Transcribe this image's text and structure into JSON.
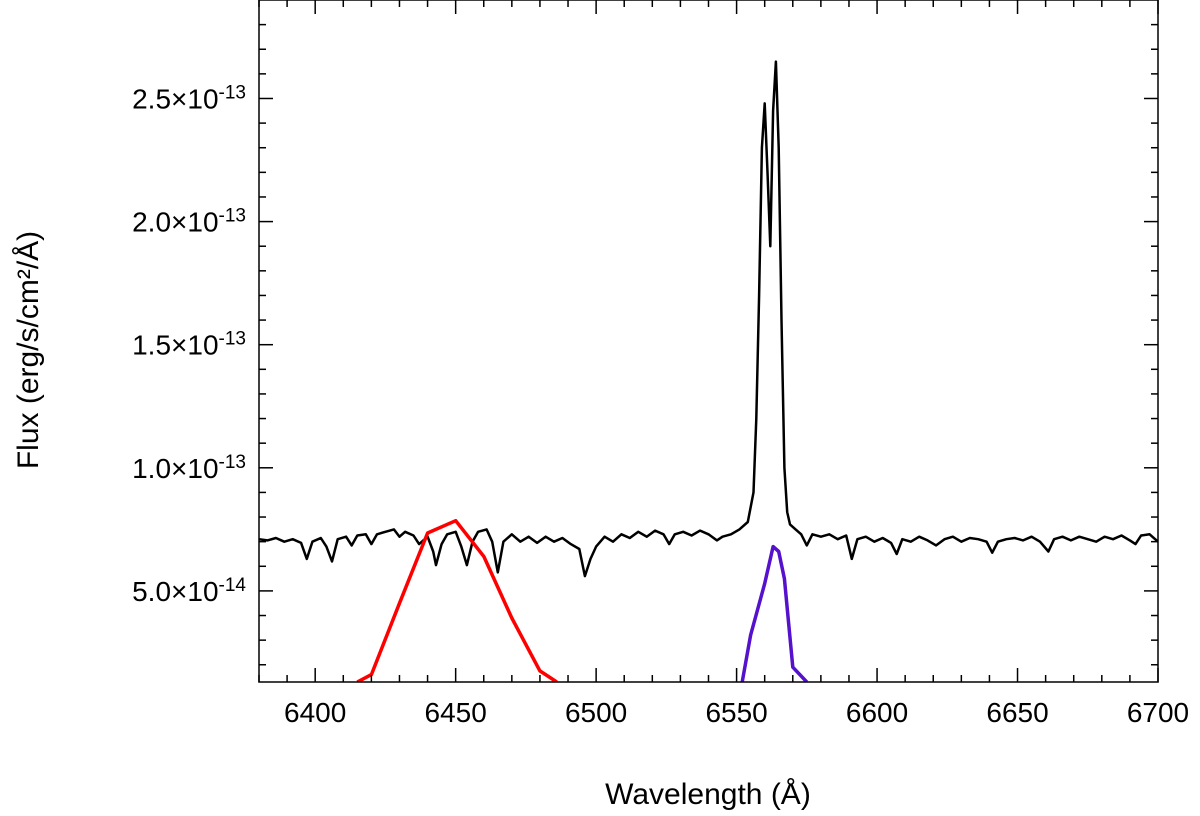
{
  "chart_data": {
    "type": "line",
    "title": "",
    "xlabel": "Wavelength (Å)",
    "ylabel": "Flux (erg/s/cm²/Å)",
    "xlim": [
      6380,
      6700
    ],
    "ylim": [
      1.3e-14,
      2.9e-13
    ],
    "grid": false,
    "legend": "none",
    "x_ticks": [
      {
        "value": 6400,
        "label": "6400"
      },
      {
        "value": 6450,
        "label": "6450"
      },
      {
        "value": 6500,
        "label": "6500"
      },
      {
        "value": 6550,
        "label": "6550"
      },
      {
        "value": 6600,
        "label": "6600"
      },
      {
        "value": 6650,
        "label": "6650"
      },
      {
        "value": 6700,
        "label": "6700"
      }
    ],
    "y_ticks": [
      {
        "value": 5e-14,
        "mantissa": "5.0",
        "exponent": "-14"
      },
      {
        "value": 1e-13,
        "mantissa": "1.0",
        "exponent": "-13"
      },
      {
        "value": 1.5e-13,
        "mantissa": "1.5",
        "exponent": "-13"
      },
      {
        "value": 2e-13,
        "mantissa": "2.0",
        "exponent": "-13"
      },
      {
        "value": 2.5e-13,
        "mantissa": "2.5",
        "exponent": "-13"
      }
    ],
    "series": [
      {
        "color": "#000000",
        "points": [
          [
            6380,
            7.1e-14
          ],
          [
            6383,
            7.05e-14
          ],
          [
            6386,
            7.15e-14
          ],
          [
            6389,
            7e-14
          ],
          [
            6392,
            7.1e-14
          ],
          [
            6395,
            6.95e-14
          ],
          [
            6397,
            6.3e-14
          ],
          [
            6399,
            7e-14
          ],
          [
            6402,
            7.15e-14
          ],
          [
            6404,
            6.8e-14
          ],
          [
            6406,
            6.2e-14
          ],
          [
            6408,
            7.1e-14
          ],
          [
            6411,
            7.2e-14
          ],
          [
            6413,
            6.85e-14
          ],
          [
            6415,
            7.25e-14
          ],
          [
            6418,
            7.3e-14
          ],
          [
            6420,
            6.9e-14
          ],
          [
            6422,
            7.3e-14
          ],
          [
            6425,
            7.4e-14
          ],
          [
            6428,
            7.5e-14
          ],
          [
            6430,
            7.2e-14
          ],
          [
            6432,
            7.4e-14
          ],
          [
            6435,
            7.25e-14
          ],
          [
            6437,
            6.9e-14
          ],
          [
            6440,
            7.2e-14
          ],
          [
            6442,
            6.6e-14
          ],
          [
            6443,
            6.05e-14
          ],
          [
            6445,
            6.9e-14
          ],
          [
            6447,
            7.3e-14
          ],
          [
            6450,
            7.4e-14
          ],
          [
            6452,
            6.8e-14
          ],
          [
            6454,
            6.05e-14
          ],
          [
            6456,
            7e-14
          ],
          [
            6458,
            7.4e-14
          ],
          [
            6461,
            7.5e-14
          ],
          [
            6463,
            7e-14
          ],
          [
            6465,
            5.75e-14
          ],
          [
            6467,
            7e-14
          ],
          [
            6470,
            7.3e-14
          ],
          [
            6473,
            7e-14
          ],
          [
            6476,
            7.2e-14
          ],
          [
            6479,
            6.95e-14
          ],
          [
            6482,
            7.2e-14
          ],
          [
            6485,
            7e-14
          ],
          [
            6488,
            7.15e-14
          ],
          [
            6491,
            6.9e-14
          ],
          [
            6494,
            6.7e-14
          ],
          [
            6496,
            5.6e-14
          ],
          [
            6498,
            6.3e-14
          ],
          [
            6500,
            6.8e-14
          ],
          [
            6503,
            7.2e-14
          ],
          [
            6506,
            7e-14
          ],
          [
            6509,
            7.3e-14
          ],
          [
            6512,
            7.15e-14
          ],
          [
            6515,
            7.4e-14
          ],
          [
            6518,
            7.2e-14
          ],
          [
            6521,
            7.45e-14
          ],
          [
            6524,
            7.3e-14
          ],
          [
            6526,
            6.9e-14
          ],
          [
            6528,
            7.3e-14
          ],
          [
            6531,
            7.4e-14
          ],
          [
            6534,
            7.25e-14
          ],
          [
            6537,
            7.45e-14
          ],
          [
            6540,
            7.3e-14
          ],
          [
            6543,
            7.05e-14
          ],
          [
            6545,
            7.2e-14
          ],
          [
            6548,
            7.3e-14
          ],
          [
            6551,
            7.5e-14
          ],
          [
            6554,
            7.8e-14
          ],
          [
            6556,
            9e-14
          ],
          [
            6557,
            1.2e-13
          ],
          [
            6558,
            1.7e-13
          ],
          [
            6559,
            2.3e-13
          ],
          [
            6560,
            2.48e-13
          ],
          [
            6561,
            2.2e-13
          ],
          [
            6562,
            1.9e-13
          ],
          [
            6563,
            2.45e-13
          ],
          [
            6564,
            2.65e-13
          ],
          [
            6565,
            2.3e-13
          ],
          [
            6566,
            1.6e-13
          ],
          [
            6567,
            1e-13
          ],
          [
            6568,
            8.2e-14
          ],
          [
            6569,
            7.7e-14
          ],
          [
            6571,
            7.5e-14
          ],
          [
            6573,
            7.3e-14
          ],
          [
            6575,
            6.85e-14
          ],
          [
            6577,
            7.3e-14
          ],
          [
            6580,
            7.2e-14
          ],
          [
            6583,
            7.3e-14
          ],
          [
            6586,
            7.1e-14
          ],
          [
            6589,
            7.25e-14
          ],
          [
            6591,
            6.3e-14
          ],
          [
            6593,
            7.1e-14
          ],
          [
            6596,
            7.2e-14
          ],
          [
            6599,
            7e-14
          ],
          [
            6602,
            7.15e-14
          ],
          [
            6605,
            6.95e-14
          ],
          [
            6607,
            6.5e-14
          ],
          [
            6609,
            7.1e-14
          ],
          [
            6612,
            7e-14
          ],
          [
            6615,
            7.2e-14
          ],
          [
            6618,
            7.05e-14
          ],
          [
            6621,
            6.85e-14
          ],
          [
            6624,
            7.1e-14
          ],
          [
            6627,
            7.2e-14
          ],
          [
            6630,
            7e-14
          ],
          [
            6633,
            7.15e-14
          ],
          [
            6636,
            7.1e-14
          ],
          [
            6639,
            7e-14
          ],
          [
            6641,
            6.55e-14
          ],
          [
            6643,
            7e-14
          ],
          [
            6646,
            7.1e-14
          ],
          [
            6649,
            7.15e-14
          ],
          [
            6652,
            7.05e-14
          ],
          [
            6655,
            7.2e-14
          ],
          [
            6658,
            7e-14
          ],
          [
            6661,
            6.6e-14
          ],
          [
            6663,
            7.1e-14
          ],
          [
            6666,
            7.2e-14
          ],
          [
            6669,
            7.05e-14
          ],
          [
            6672,
            7.2e-14
          ],
          [
            6675,
            7.1e-14
          ],
          [
            6678,
            7e-14
          ],
          [
            6681,
            7.2e-14
          ],
          [
            6684,
            7.1e-14
          ],
          [
            6687,
            7.25e-14
          ],
          [
            6690,
            7.05e-14
          ],
          [
            6692,
            6.9e-14
          ],
          [
            6694,
            7.25e-14
          ],
          [
            6697,
            7.3e-14
          ],
          [
            6700,
            7e-14
          ]
        ]
      },
      {
        "color": "#ff0000",
        "points": [
          [
            6415,
            1.3e-14
          ],
          [
            6420,
            1.6e-14
          ],
          [
            6430,
            4.5e-14
          ],
          [
            6440,
            7.35e-14
          ],
          [
            6450,
            7.85e-14
          ],
          [
            6460,
            6.4e-14
          ],
          [
            6470,
            3.9e-14
          ],
          [
            6480,
            1.75e-14
          ],
          [
            6486,
            1.3e-14
          ]
        ]
      },
      {
        "color": "#5511cc",
        "points": [
          [
            6552,
            1.3e-14
          ],
          [
            6555,
            3.2e-14
          ],
          [
            6560,
            5.3e-14
          ],
          [
            6563,
            6.8e-14
          ],
          [
            6565,
            6.6e-14
          ],
          [
            6567,
            5.5e-14
          ],
          [
            6570,
            1.9e-14
          ],
          [
            6575,
            1.3e-14
          ]
        ]
      }
    ]
  }
}
